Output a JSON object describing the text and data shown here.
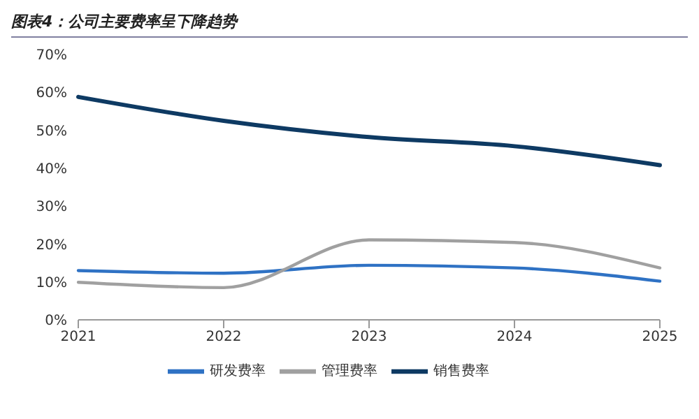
{
  "chart_data": {
    "type": "line",
    "title": "图表4：公司主要费率呈下降趋势",
    "categories": [
      "2021",
      "2022",
      "2023",
      "2024",
      "2025"
    ],
    "series": [
      {
        "name": "销售费率",
        "color": "#0e3a63",
        "values": [
          58.8,
          52.5,
          48.2,
          45.8,
          40.8
        ]
      },
      {
        "name": "研发费率",
        "color": "#2f72c4",
        "values": [
          13,
          12.3,
          14.4,
          13.7,
          10.2
        ]
      },
      {
        "name": "管理费率",
        "color": "#a0a0a0",
        "values": [
          9.9,
          8.5,
          21.1,
          20.4,
          13.7
        ]
      }
    ],
    "ylim": [
      0,
      70
    ],
    "yticks": [
      {
        "value": 0,
        "label": "0%"
      },
      {
        "value": 10,
        "label": "10%"
      },
      {
        "value": 20,
        "label": "20%"
      },
      {
        "value": 30,
        "label": "30%"
      },
      {
        "value": 40,
        "label": "40%"
      },
      {
        "value": 50,
        "label": "50%"
      },
      {
        "value": 60,
        "label": "60%"
      },
      {
        "value": 70,
        "label": "70%"
      }
    ],
    "grid": false,
    "legend": "bottom",
    "marker": "none",
    "line_style": "solid"
  }
}
